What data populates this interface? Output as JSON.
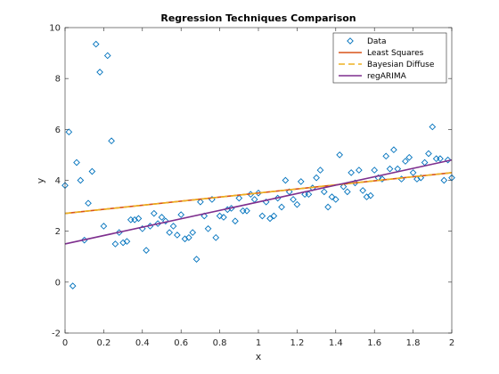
{
  "chart_data": {
    "type": "scatter",
    "title": "Regression Techniques Comparison",
    "xlabel": "x",
    "ylabel": "y",
    "xlim": [
      0,
      2
    ],
    "ylim": [
      -2,
      10
    ],
    "xticks": [
      "0",
      "0.2",
      "0.4",
      "0.6",
      "0.8",
      "1",
      "1.2",
      "1.4",
      "1.6",
      "1.8",
      "2"
    ],
    "yticks": [
      "-2",
      "0",
      "2",
      "4",
      "6",
      "8",
      "10"
    ],
    "grid": false,
    "legend_position": "top-right",
    "series": [
      {
        "name": "Data",
        "kind": "scatter",
        "marker": "diamond",
        "color": "#0072BD",
        "x": [
          0.0,
          0.02,
          0.04,
          0.06,
          0.08,
          0.1,
          0.12,
          0.14,
          0.16,
          0.18,
          0.2,
          0.22,
          0.24,
          0.26,
          0.28,
          0.3,
          0.32,
          0.34,
          0.36,
          0.38,
          0.4,
          0.42,
          0.44,
          0.46,
          0.48,
          0.5,
          0.52,
          0.54,
          0.56,
          0.58,
          0.6,
          0.62,
          0.64,
          0.66,
          0.68,
          0.7,
          0.72,
          0.74,
          0.76,
          0.78,
          0.8,
          0.82,
          0.84,
          0.86,
          0.88,
          0.9,
          0.92,
          0.94,
          0.96,
          0.98,
          1.0,
          1.02,
          1.04,
          1.06,
          1.08,
          1.1,
          1.12,
          1.14,
          1.16,
          1.18,
          1.2,
          1.22,
          1.24,
          1.26,
          1.28,
          1.3,
          1.32,
          1.34,
          1.36,
          1.38,
          1.4,
          1.42,
          1.44,
          1.46,
          1.48,
          1.5,
          1.52,
          1.54,
          1.56,
          1.58,
          1.6,
          1.62,
          1.64,
          1.66,
          1.68,
          1.7,
          1.72,
          1.74,
          1.76,
          1.78,
          1.8,
          1.82,
          1.84,
          1.86,
          1.88,
          1.9,
          1.92,
          1.94,
          1.96,
          1.98,
          2.0
        ],
        "y": [
          3.8,
          5.9,
          -0.15,
          4.7,
          4.0,
          1.65,
          3.1,
          4.35,
          9.35,
          8.25,
          2.2,
          8.9,
          5.55,
          1.5,
          1.95,
          1.55,
          1.6,
          2.45,
          2.45,
          2.5,
          2.1,
          1.25,
          2.2,
          2.7,
          2.3,
          2.55,
          2.4,
          1.95,
          2.2,
          1.85,
          2.65,
          1.7,
          1.75,
          1.95,
          0.9,
          3.15,
          2.6,
          2.1,
          3.25,
          1.75,
          2.6,
          2.55,
          2.85,
          2.9,
          2.4,
          3.3,
          2.8,
          2.8,
          3.45,
          3.25,
          3.5,
          2.6,
          3.15,
          2.5,
          2.6,
          3.3,
          2.95,
          4.0,
          3.55,
          3.25,
          3.05,
          3.95,
          3.45,
          3.45,
          3.7,
          4.1,
          4.4,
          3.55,
          2.95,
          3.35,
          3.25,
          5.0,
          3.75,
          3.55,
          4.3,
          3.9,
          4.4,
          3.6,
          3.35,
          3.4,
          4.4,
          4.1,
          4.05,
          4.95,
          4.45,
          5.2,
          4.45,
          4.05,
          4.75,
          4.9,
          4.3,
          4.05,
          4.1,
          4.7,
          5.05,
          6.1,
          4.85,
          4.85,
          4.0,
          4.8,
          4.1
        ]
      },
      {
        "name": "Least Squares",
        "kind": "line",
        "color": "#D95319",
        "x": [
          0,
          2
        ],
        "y": [
          2.7,
          4.3
        ]
      },
      {
        "name": "Bayesian Diffuse",
        "kind": "line",
        "dashed": true,
        "color": "#EDB120",
        "x": [
          0,
          2
        ],
        "y": [
          2.7,
          4.3
        ]
      },
      {
        "name": "regARIMA",
        "kind": "line",
        "color": "#7E2F8E",
        "x": [
          0,
          2
        ],
        "y": [
          1.5,
          4.8
        ]
      }
    ]
  }
}
